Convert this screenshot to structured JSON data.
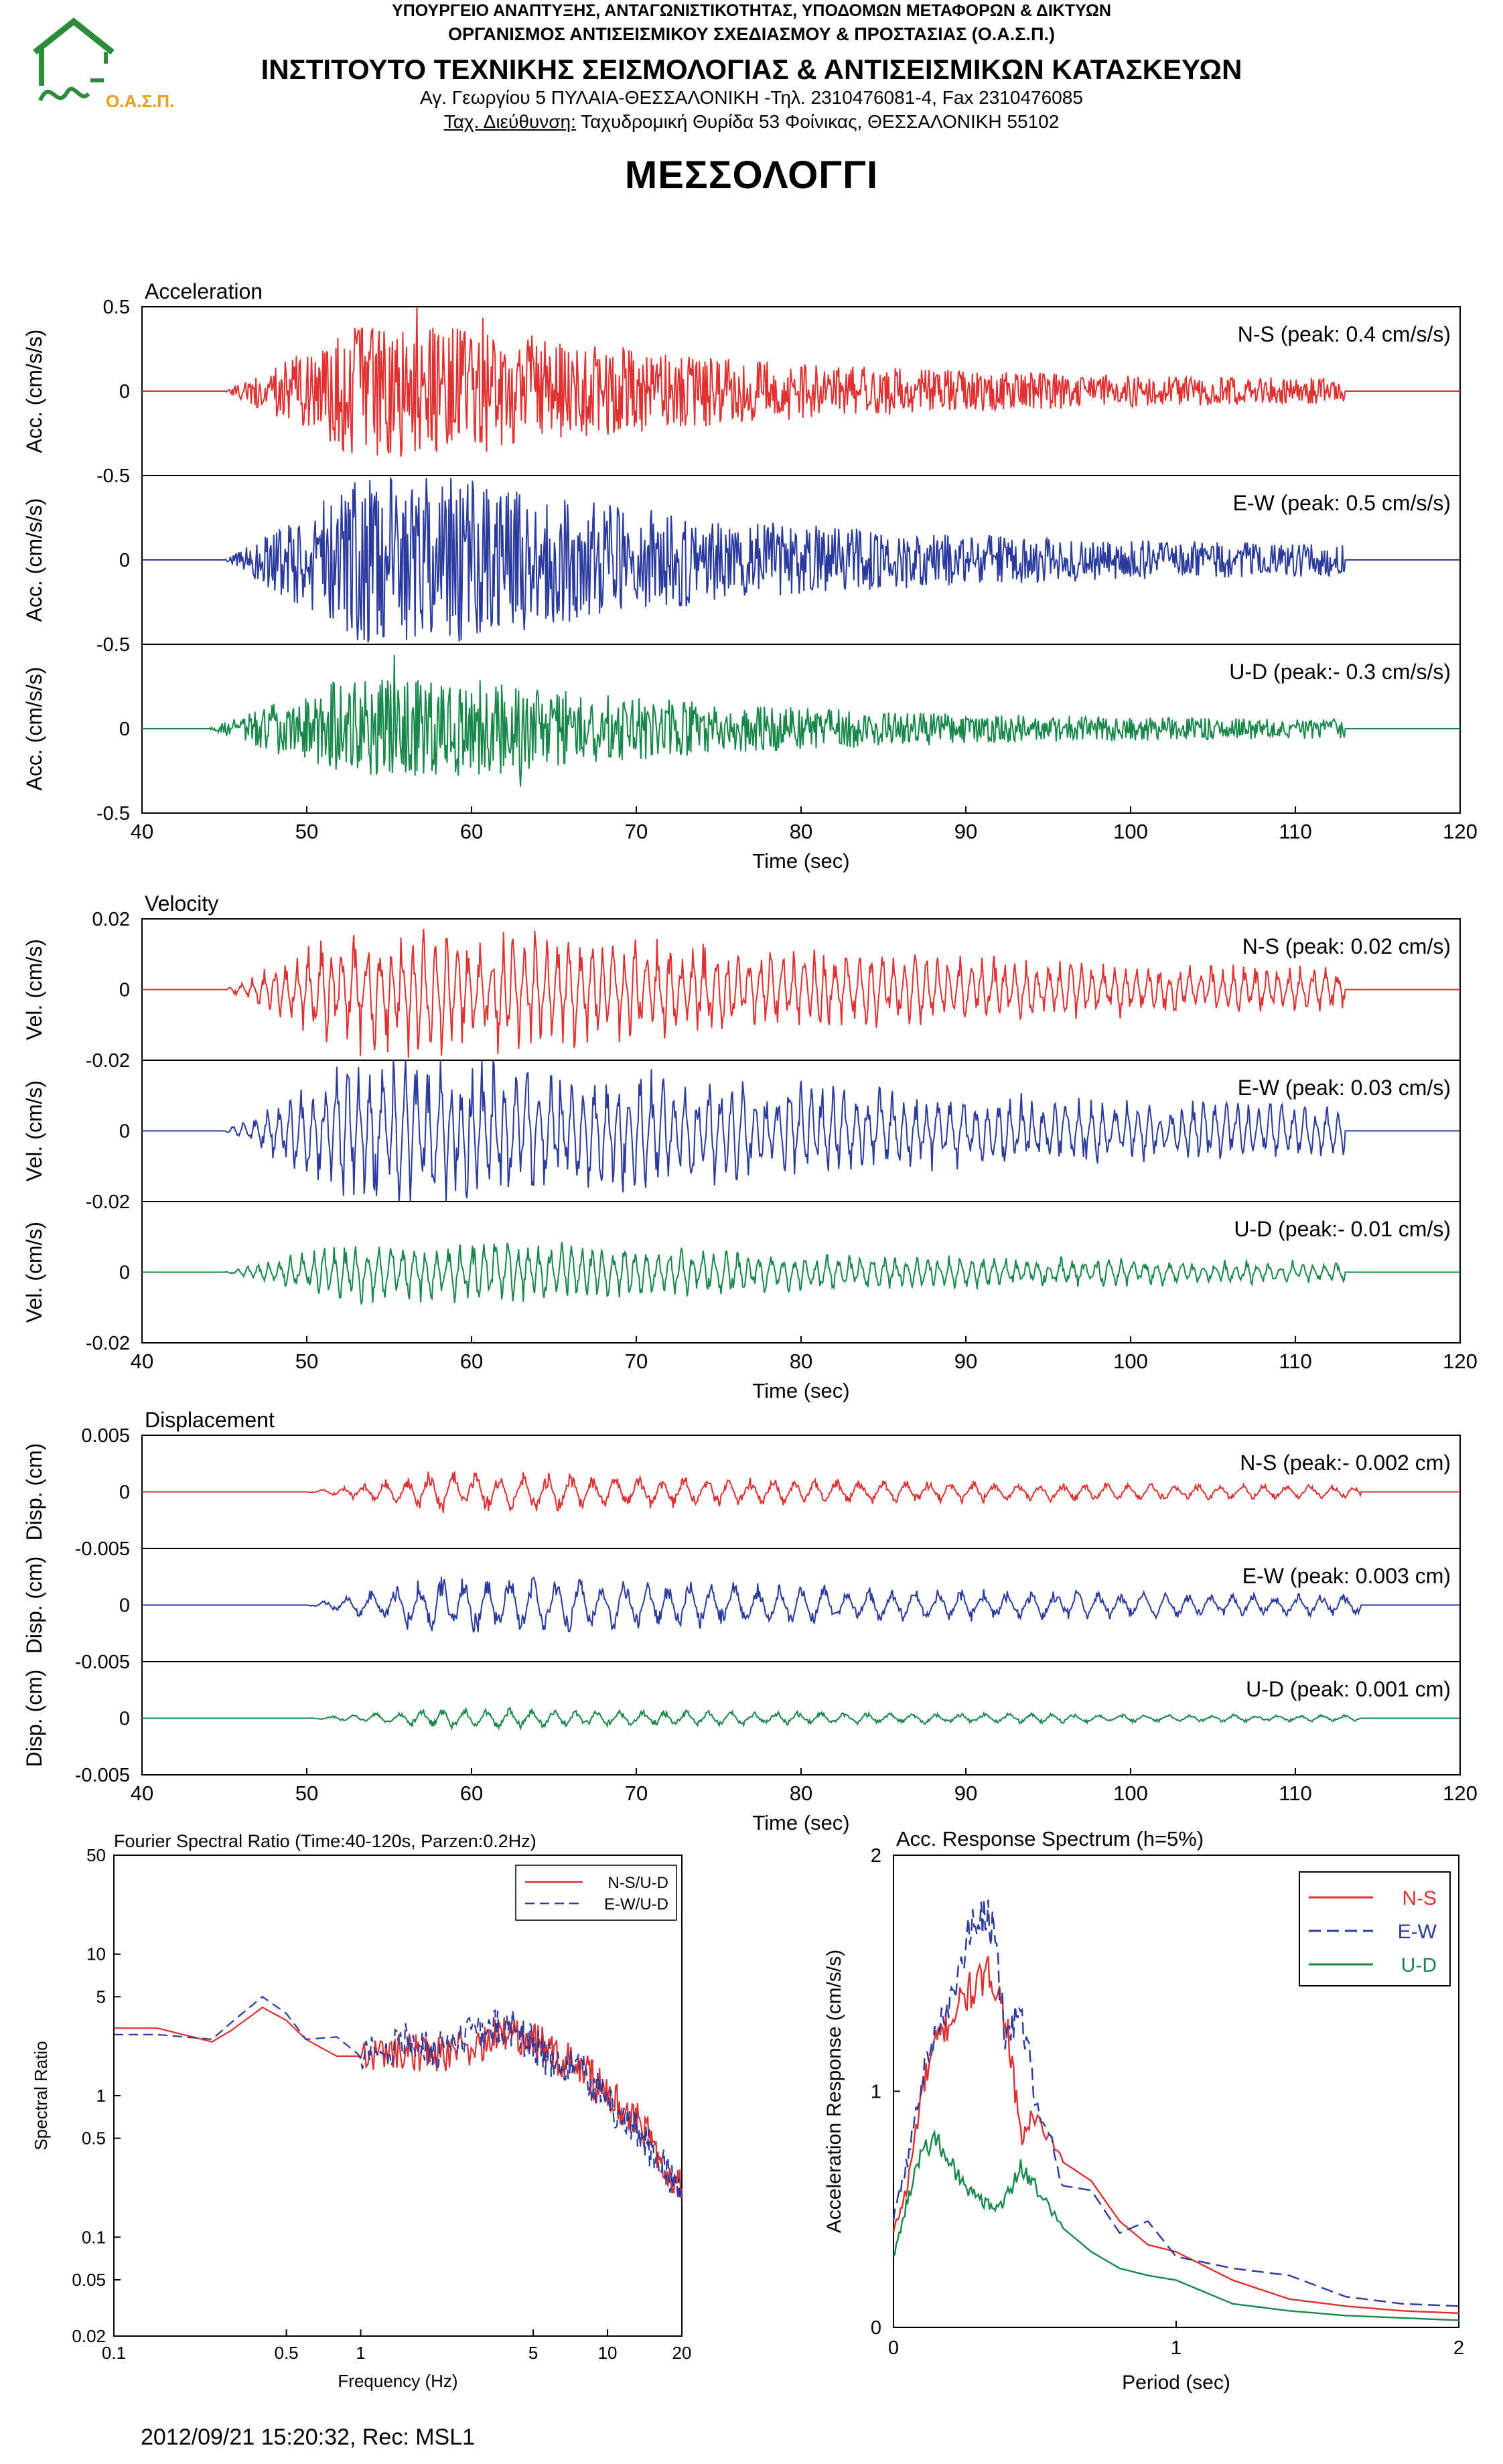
{
  "header": {
    "ministry": "ΥΠΟΥΡΓΕΙΟ ΑΝΑΠΤΥΞΗΣ, ΑΝΤΑΓΩΝΙΣΤΙΚΟΤΗΤΑΣ, ΥΠΟΔΟΜΩΝ ΜΕΤΑΦΟΡΩΝ & ΔΙΚΤΥΩΝ",
    "organization": "ΟΡΓΑΝΙΣΜΟΣ ΑΝΤΙΣΕΙΣΜΙΚΟΥ ΣΧΕΔΙΑΣΜΟΥ & ΠΡΟΣΤΑΣΙΑΣ (Ο.Α.Σ.Π.)",
    "institute": "ΙΝΣΤΙΤΟΥΤΟ ΤΕΧΝΙΚΗΣ ΣΕΙΣΜΟΛΟΓΙΑΣ & ΑΝΤΙΣΕΙΣΜΙΚΩΝ ΚΑΤΑΣΚΕΥΩΝ",
    "address": "Αγ. Γεωργίου 5 ΠΥΛΑΙΑ-ΘΕΣΣΑΛΟΝΙΚΗ -Τηλ. 2310476081-4, Fax 2310476085",
    "postal_label": "Ταχ. Διεύθυνση:",
    "postal_address": " Ταχυδρομική Θυρίδα 53 Φοίνικας, ΘΕΣΣΑΛΟΝΙΚΗ 55102",
    "logo_text": "Ο.Α.Σ.Π.",
    "city": "ΜΕΣΣΟΛΟΓΓΙ"
  },
  "colors": {
    "ns": "#e03030",
    "ew": "#2a3a9e",
    "ud": "#17884a",
    "logo": "#2e8b3a",
    "logo_text": "#e8a020"
  },
  "footer": "2012/09/21 15:20:32, Rec: MSL1",
  "chart_data": [
    {
      "type": "line",
      "title": "Acceleration",
      "xlabel": "Time (sec)",
      "xlim": [
        40,
        120
      ],
      "x_ticks": [
        "40",
        "50",
        "60",
        "70",
        "80",
        "90",
        "100",
        "110",
        "120"
      ],
      "panels": [
        {
          "component": "N-S",
          "label": "N-S (peak: 0.4 cm/s/s)",
          "ylabel": "Acc. (cm/s/s)",
          "ylim": [
            -0.5,
            0.5
          ],
          "y_ticks": [
            "0.5",
            "0",
            "-0.5"
          ],
          "peak": 0.4,
          "onset": 45,
          "end": 113
        },
        {
          "component": "E-W",
          "label": "E-W (peak: 0.5 cm/s/s)",
          "ylabel": "Acc. (cm/s/s)",
          "ylim": [
            -0.5,
            0.5
          ],
          "y_ticks": [
            "0",
            "-0.5"
          ],
          "peak": 0.5,
          "onset": 45,
          "end": 113
        },
        {
          "component": "U-D",
          "label": "U-D (peak:- 0.3 cm/s/s)",
          "ylabel": "Acc. (cm/s/s)",
          "ylim": [
            -0.5,
            0.5
          ],
          "y_ticks": [
            "0",
            "-0.5"
          ],
          "peak": 0.3,
          "onset": 44,
          "end": 113
        }
      ]
    },
    {
      "type": "line",
      "title": "Velocity",
      "xlabel": "Time (sec)",
      "xlim": [
        40,
        120
      ],
      "x_ticks": [
        "40",
        "50",
        "60",
        "70",
        "80",
        "90",
        "100",
        "110",
        "120"
      ],
      "panels": [
        {
          "component": "N-S",
          "label": "N-S (peak: 0.02 cm/s)",
          "ylabel": "Vel. (cm/s)",
          "ylim": [
            -0.02,
            0.02
          ],
          "y_ticks": [
            "0.02",
            "0",
            "-0.02"
          ],
          "peak": 0.02,
          "onset": 45,
          "end": 113
        },
        {
          "component": "E-W",
          "label": "E-W (peak: 0.03 cm/s)",
          "ylabel": "Vel. (cm/s)",
          "ylim": [
            -0.02,
            0.02
          ],
          "y_ticks": [
            "0",
            "-0.02"
          ],
          "peak": 0.03,
          "onset": 45,
          "end": 113
        },
        {
          "component": "U-D",
          "label": "U-D (peak:- 0.01 cm/s)",
          "ylabel": "Vel. (cm/s)",
          "ylim": [
            -0.02,
            0.02
          ],
          "y_ticks": [
            "0",
            "-0.02"
          ],
          "peak": 0.01,
          "onset": 45,
          "end": 113
        }
      ]
    },
    {
      "type": "line",
      "title": "Displacement",
      "xlabel": "Time (sec)",
      "xlim": [
        40,
        120
      ],
      "x_ticks": [
        "40",
        "50",
        "60",
        "70",
        "80",
        "90",
        "100",
        "110",
        "120"
      ],
      "panels": [
        {
          "component": "N-S",
          "label": "N-S (peak:- 0.002 cm)",
          "ylabel": "Disp. (cm)",
          "ylim": [
            -0.005,
            0.005
          ],
          "y_ticks": [
            "0.005",
            "0",
            "-0.005"
          ],
          "peak": 0.002,
          "onset": 50,
          "end": 114
        },
        {
          "component": "E-W",
          "label": "E-W (peak: 0.003 cm)",
          "ylabel": "Disp. (cm)",
          "ylim": [
            -0.005,
            0.005
          ],
          "y_ticks": [
            "0",
            "-0.005"
          ],
          "peak": 0.003,
          "onset": 50,
          "end": 114
        },
        {
          "component": "U-D",
          "label": "U-D (peak: 0.001 cm)",
          "ylabel": "Disp. (cm)",
          "ylim": [
            -0.005,
            0.005
          ],
          "y_ticks": [
            "0",
            "-0.005"
          ],
          "peak": 0.001,
          "onset": 50,
          "end": 114
        }
      ]
    },
    {
      "type": "line",
      "title": "Fourier Spectral Ratio (Time:40-120s, Parzen:0.2Hz)",
      "xlabel": "Frequency (Hz)",
      "ylabel": "Spectral Ratio",
      "x_scale": "log",
      "y_scale": "log",
      "xlim": [
        0.1,
        20
      ],
      "ylim": [
        0.02,
        50
      ],
      "x_ticks": [
        0.1,
        0.5,
        1,
        5,
        10,
        20
      ],
      "x_tick_labels": [
        "0.1",
        "0.5",
        "1",
        "5",
        "10",
        "20"
      ],
      "y_ticks": [
        50,
        10,
        5,
        1,
        0.5,
        0.1,
        0.05,
        0.02
      ],
      "y_tick_labels": [
        "50",
        "10",
        "5",
        "1",
        "0.5",
        "0.1",
        "0.05",
        "0.02"
      ],
      "legend": "top-right",
      "series": [
        {
          "name": "N-S/U-D",
          "x": [
            0.1,
            0.15,
            0.25,
            0.3,
            0.4,
            0.5,
            0.6,
            0.8,
            1,
            1.5,
            2,
            3,
            4,
            5,
            6,
            8,
            10,
            13,
            16,
            20
          ],
          "y": [
            3.0,
            3.0,
            2.4,
            2.9,
            4.2,
            3.4,
            2.5,
            1.9,
            1.9,
            2.1,
            2.0,
            2.2,
            2.8,
            2.6,
            2.0,
            1.5,
            1.0,
            0.7,
            0.4,
            0.22
          ]
        },
        {
          "name": "E-W/U-D",
          "x": [
            0.1,
            0.15,
            0.25,
            0.3,
            0.4,
            0.5,
            0.6,
            0.8,
            1,
            1.5,
            2,
            3,
            4,
            5,
            6,
            8,
            10,
            13,
            16,
            20
          ],
          "y": [
            2.7,
            2.7,
            2.5,
            3.3,
            5.0,
            3.8,
            2.5,
            2.6,
            1.9,
            2.4,
            2.0,
            2.8,
            3.0,
            2.3,
            1.7,
            1.4,
            0.9,
            0.6,
            0.35,
            0.2
          ]
        }
      ]
    },
    {
      "type": "line",
      "title": "Acc. Response Spectrum (h=5%)",
      "xlabel": "Period (sec)",
      "ylabel": "Acceleration Response (cm/s/s)",
      "xlim": [
        0,
        2
      ],
      "ylim": [
        0,
        2
      ],
      "x_ticks": [
        "0",
        "1",
        "2"
      ],
      "y_ticks": [
        "2",
        "1",
        "0"
      ],
      "legend": "top-right",
      "series": [
        {
          "name": "N-S",
          "x": [
            0,
            0.05,
            0.1,
            0.15,
            0.2,
            0.25,
            0.3,
            0.35,
            0.4,
            0.45,
            0.5,
            0.6,
            0.7,
            0.8,
            0.9,
            1.0,
            1.2,
            1.4,
            1.6,
            1.8,
            2.0
          ],
          "y": [
            0.4,
            0.6,
            1.0,
            1.2,
            1.3,
            1.4,
            1.45,
            1.5,
            1.3,
            0.8,
            0.9,
            0.7,
            0.62,
            0.45,
            0.35,
            0.32,
            0.2,
            0.12,
            0.09,
            0.07,
            0.06
          ]
        },
        {
          "name": "E-W",
          "x": [
            0,
            0.05,
            0.1,
            0.15,
            0.2,
            0.25,
            0.3,
            0.35,
            0.4,
            0.45,
            0.5,
            0.6,
            0.7,
            0.8,
            0.9,
            1.0,
            1.2,
            1.4,
            1.6,
            1.8,
            2.0
          ],
          "y": [
            0.45,
            0.7,
            1.05,
            1.25,
            1.35,
            1.6,
            1.75,
            1.7,
            1.2,
            1.35,
            1.0,
            0.6,
            0.58,
            0.4,
            0.45,
            0.3,
            0.25,
            0.22,
            0.13,
            0.1,
            0.09
          ]
        },
        {
          "name": "U-D",
          "x": [
            0,
            0.05,
            0.1,
            0.15,
            0.2,
            0.25,
            0.3,
            0.35,
            0.4,
            0.45,
            0.5,
            0.6,
            0.7,
            0.8,
            0.9,
            1.0,
            1.2,
            1.4,
            1.6,
            1.8,
            2.0
          ],
          "y": [
            0.3,
            0.55,
            0.75,
            0.8,
            0.7,
            0.6,
            0.55,
            0.5,
            0.55,
            0.68,
            0.6,
            0.42,
            0.32,
            0.25,
            0.22,
            0.2,
            0.1,
            0.07,
            0.05,
            0.04,
            0.03
          ]
        }
      ]
    }
  ]
}
